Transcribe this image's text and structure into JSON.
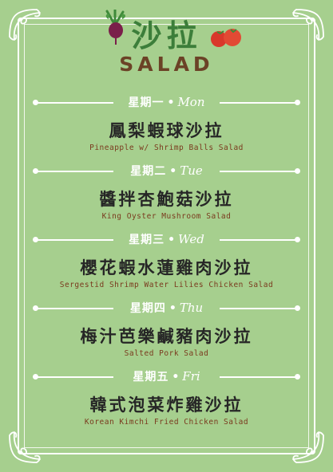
{
  "header": {
    "title_zh": "沙拉",
    "title_en": "SALAD"
  },
  "colors": {
    "background": "#a6cf8e",
    "title_green": "#3c7e3a",
    "title_brown": "#6b4226",
    "dish_text": "#262626",
    "dish_en_text": "#7a3a1e"
  },
  "icons": [
    "beetroot-icon",
    "tomato-icon",
    "corner-flourish-icon"
  ],
  "days": [
    {
      "zh": "星期一",
      "en": "Mon",
      "dish_zh": "鳳梨蝦球沙拉",
      "dish_en": "Pineapple w/ Shrimp Balls Salad"
    },
    {
      "zh": "星期二",
      "en": "Tue",
      "dish_zh": "醬拌杏鮑菇沙拉",
      "dish_en": "King Oyster Mushroom Salad"
    },
    {
      "zh": "星期三",
      "en": "Wed",
      "dish_zh": "櫻花蝦水蓮雞肉沙拉",
      "dish_en": "Sergestid Shrimp Water Lilies Chicken Salad"
    },
    {
      "zh": "星期四",
      "en": "Thu",
      "dish_zh": "梅汁芭樂鹹豬肉沙拉",
      "dish_en": "Salted Pork Salad"
    },
    {
      "zh": "星期五",
      "en": "Fri",
      "dish_zh": "韓式泡菜炸雞沙拉",
      "dish_en": "Korean Kimchi Fried Chicken Salad"
    }
  ]
}
